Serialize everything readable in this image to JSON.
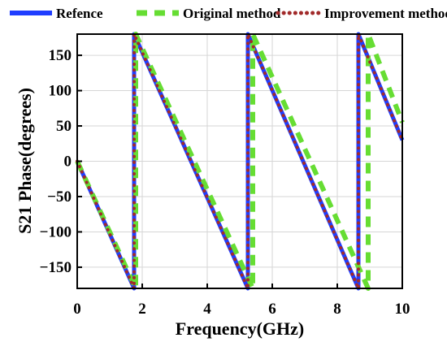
{
  "chart_data": {
    "type": "line",
    "xlabel": "Frequency(GHz)",
    "ylabel": "S21 Phase(degrees)",
    "xlim": [
      0,
      10
    ],
    "ylim": [
      -180,
      180
    ],
    "x_ticks": [
      0,
      2,
      4,
      6,
      8,
      10
    ],
    "y_ticks": [
      -150,
      -100,
      -50,
      0,
      50,
      100,
      150
    ],
    "grid": true,
    "legend_position": "top",
    "series": [
      {
        "name": "Refence",
        "color": "#1f3dff",
        "style": "solid",
        "points": [
          [
            0,
            0
          ],
          [
            1.75,
            -180
          ],
          [
            1.75,
            180
          ],
          [
            5.25,
            -180
          ],
          [
            5.25,
            180
          ],
          [
            8.65,
            -180
          ],
          [
            8.65,
            180
          ],
          [
            10,
            30
          ]
        ]
      },
      {
        "name": "Original method",
        "color": "#66dd33",
        "style": "dashed",
        "points": [
          [
            0,
            0
          ],
          [
            1.8,
            -180
          ],
          [
            1.8,
            180
          ],
          [
            5.4,
            -180
          ],
          [
            5.4,
            180
          ],
          [
            8.95,
            -180
          ],
          [
            8.95,
            180
          ],
          [
            10,
            55
          ]
        ]
      },
      {
        "name": "Improvement method",
        "color": "#a12a2a",
        "style": "dotted",
        "points": [
          [
            0,
            0
          ],
          [
            1.75,
            -180
          ],
          [
            1.75,
            180
          ],
          [
            5.25,
            -180
          ],
          [
            5.25,
            180
          ],
          [
            8.65,
            -180
          ],
          [
            8.65,
            180
          ],
          [
            10,
            30
          ]
        ]
      }
    ]
  }
}
